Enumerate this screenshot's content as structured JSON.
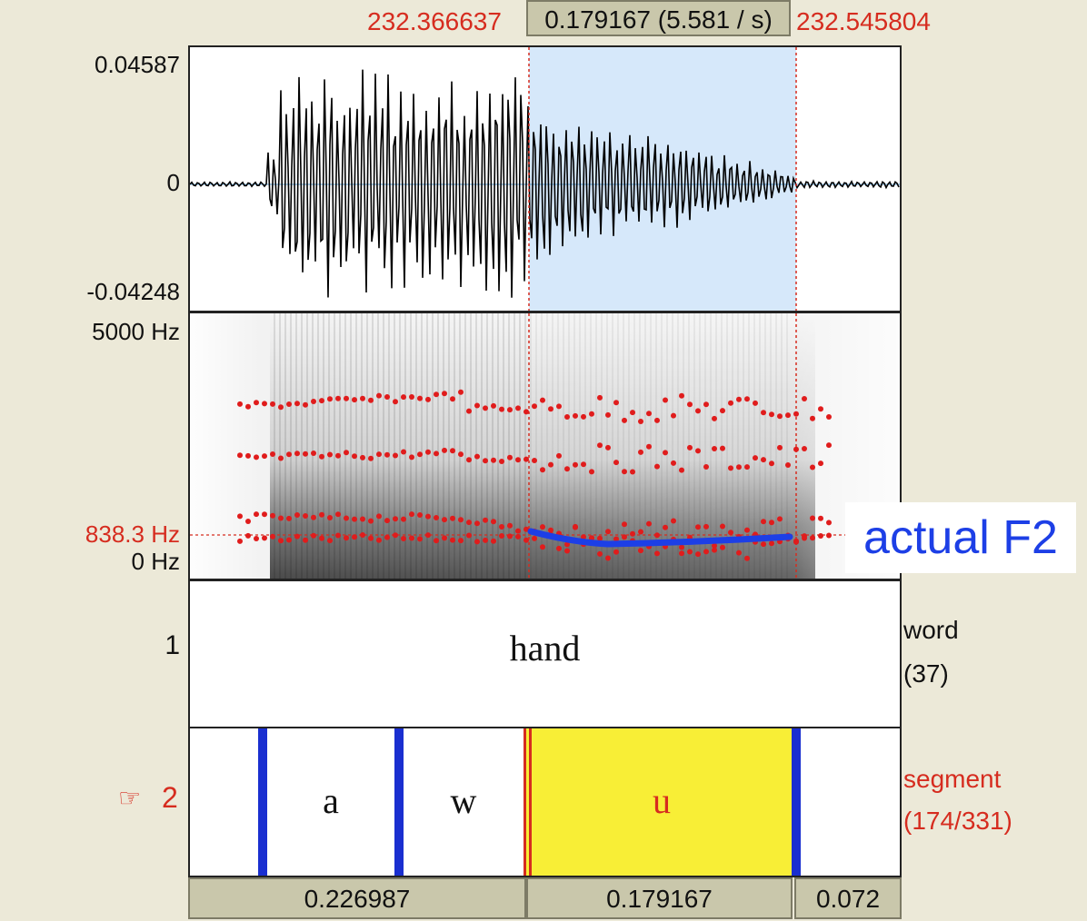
{
  "selection": {
    "start": "232.366637",
    "duration": "0.179167 (5.581 / s)",
    "end": "232.545804"
  },
  "waveform": {
    "ymax": "0.04587",
    "zero": "0",
    "ymin": "-0.04248"
  },
  "spectrogram": {
    "ymax": "5000 Hz",
    "cursor": "838.3 Hz",
    "ymin": "0 Hz"
  },
  "annotation": {
    "text": "actual F2",
    "color": "#1d3fe6"
  },
  "tiers": [
    {
      "number": "1",
      "name": "word",
      "count": "(37)",
      "intervals": [
        {
          "text": "hand"
        }
      ]
    },
    {
      "pointer": "☞",
      "number": "2",
      "name": "segment",
      "count": "(174/331)",
      "intervals": [
        {
          "text": "a"
        },
        {
          "text": "w"
        },
        {
          "text": "u"
        }
      ]
    }
  ],
  "bottom_durations": [
    "0.226987",
    "0.179167",
    "0.072"
  ],
  "colors": {
    "selection_time": "#d62c1f",
    "selection_fill": "#d6e8fa",
    "boundary": "#1a2fd0",
    "selected_interval": "#f8ee36",
    "formant_points": "#e01c1c"
  }
}
